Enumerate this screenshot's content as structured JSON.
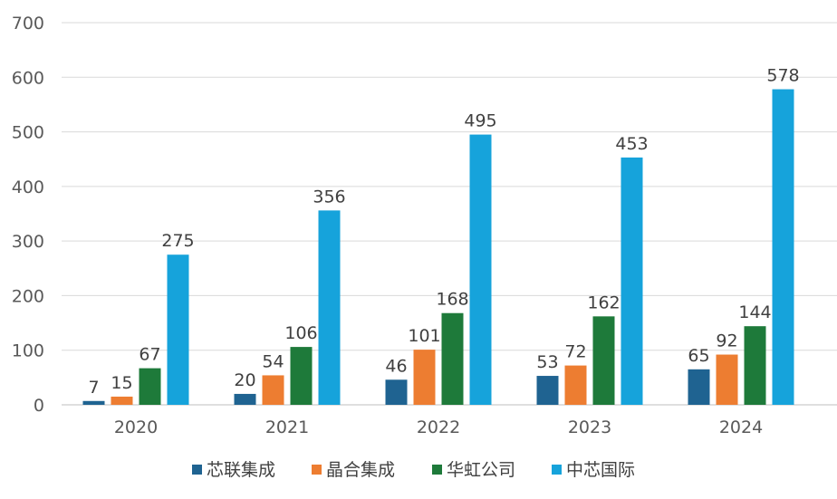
{
  "chart_data": {
    "type": "bar",
    "title": "",
    "xlabel": "",
    "ylabel": "",
    "categories": [
      "2020",
      "2021",
      "2022",
      "2023",
      "2024"
    ],
    "series": [
      {
        "name": "芯联集成",
        "values": [
          7,
          20,
          46,
          53,
          65
        ],
        "color": "#1f6391"
      },
      {
        "name": "晶合集成",
        "values": [
          15,
          54,
          101,
          72,
          92
        ],
        "color": "#ed7d31"
      },
      {
        "name": "华虹公司",
        "values": [
          67,
          106,
          168,
          162,
          144
        ],
        "color": "#1e7a3a"
      },
      {
        "name": "中芯国际",
        "values": [
          275,
          356,
          495,
          453,
          578
        ],
        "color": "#16a3db"
      }
    ],
    "ylim": [
      0,
      700
    ],
    "yticks": [
      0,
      100,
      200,
      300,
      400,
      500,
      600,
      700
    ],
    "grid": true,
    "legend": "bottom",
    "data_labels": true
  }
}
